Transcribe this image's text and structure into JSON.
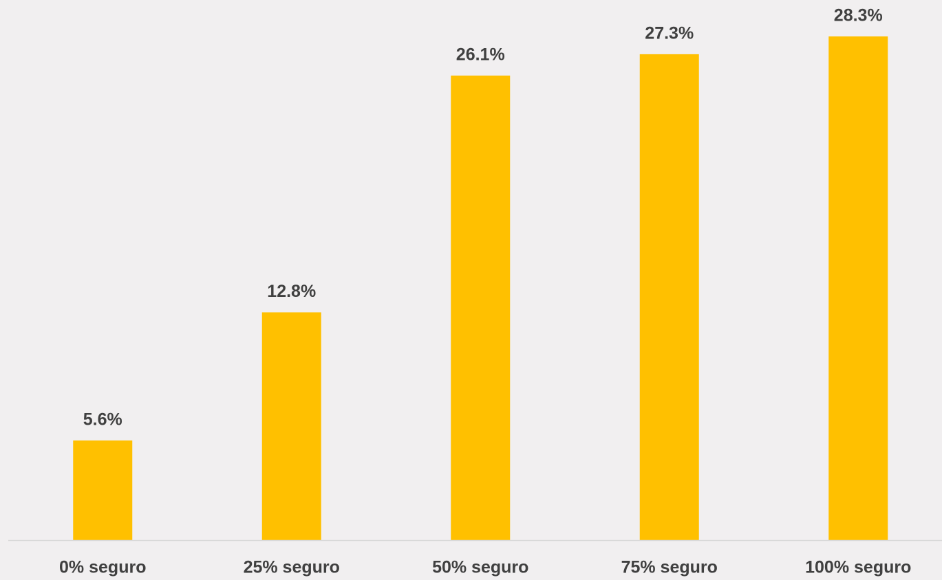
{
  "chart_data": {
    "type": "bar",
    "categories": [
      "0% seguro",
      "25% seguro",
      "50% seguro",
      "75% seguro",
      "100% seguro"
    ],
    "values": [
      5.6,
      12.8,
      26.1,
      27.3,
      28.3
    ],
    "value_labels": [
      "5.6%",
      "12.8%",
      "26.1%",
      "27.3%",
      "28.3%"
    ],
    "color": "#ffc000"
  }
}
